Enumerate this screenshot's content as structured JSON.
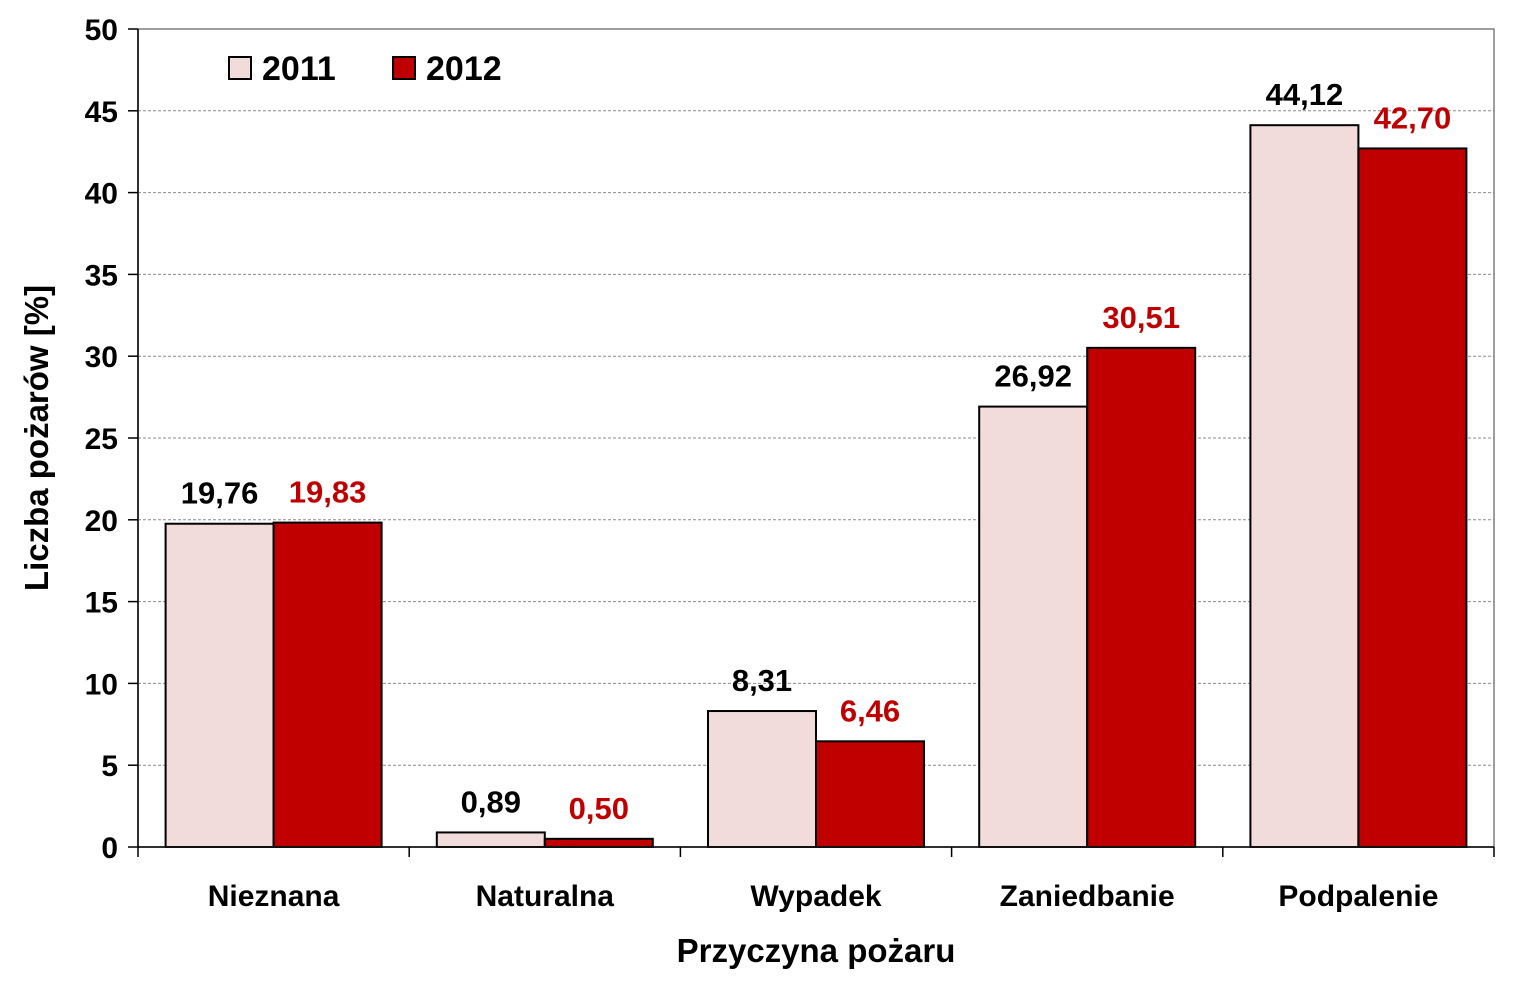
{
  "chart_data": {
    "type": "bar",
    "title": "",
    "xlabel": "Przyczyna pożaru",
    "ylabel": "Liczba pożarów [%]",
    "ylim": [
      0,
      50
    ],
    "yticks": [
      0,
      5,
      10,
      15,
      20,
      25,
      30,
      35,
      40,
      45,
      50
    ],
    "grid": true,
    "legend_position": "top-left",
    "categories": [
      "Nieznana",
      "Naturalna",
      "Wypadek",
      "Zaniedbanie",
      "Podpalenie"
    ],
    "series": [
      {
        "name": "2011",
        "color": "#f2dcdb",
        "label_color": "#000000",
        "values": [
          19.76,
          0.89,
          8.31,
          26.92,
          44.12
        ],
        "labels": [
          "19,76",
          "0,89",
          "8,31",
          "26,92",
          "44,12"
        ]
      },
      {
        "name": "2012",
        "color": "#c00000",
        "label_color": "#c00000",
        "values": [
          19.83,
          0.5,
          6.46,
          30.51,
          42.7
        ],
        "labels": [
          "19,83",
          "0,50",
          "6,46",
          "30,51",
          "42,70"
        ]
      }
    ]
  }
}
